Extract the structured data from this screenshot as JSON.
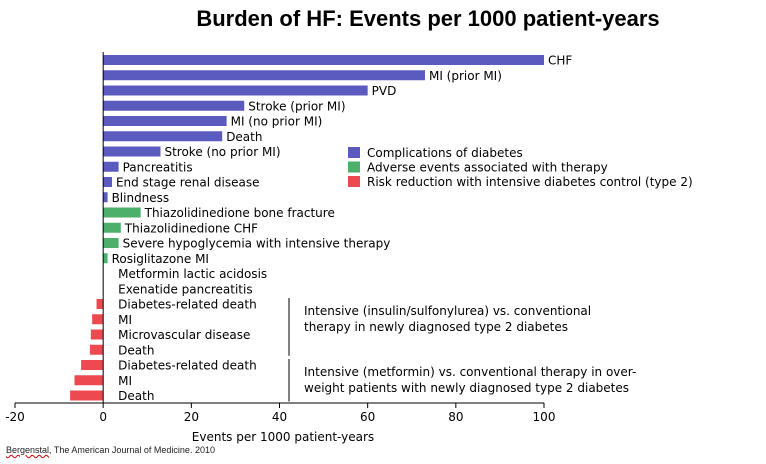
{
  "chart_data": {
    "type": "bar",
    "orientation": "horizontal",
    "title": "Burden of HF: Events per 1000 patient-years",
    "xlabel": "Events per 1000 patient-years",
    "ylabel": "",
    "xlim": [
      -20,
      100
    ],
    "xticks": [
      "-20",
      "0",
      "20",
      "40",
      "60",
      "80",
      "100"
    ],
    "grid": false,
    "legend_position": "right",
    "legend": [
      {
        "name": "Complications of diabetes",
        "color": "#5b5bbf"
      },
      {
        "name": "Adverse events associated with therapy",
        "color": "#4caf6a"
      },
      {
        "name": "Risk reduction with intensive diabetes control (type 2)",
        "color": "#ec4a50"
      }
    ],
    "categories": [
      "CHF",
      "MI (prior MI)",
      "PVD",
      "Stroke (prior MI)",
      "MI (no prior MI)",
      "Death",
      "Stroke (no prior MI)",
      "Pancreatitis",
      "End stage renal disease",
      "Blindness",
      "Thiazolidinedione bone fracture",
      "Thiazolidinedione CHF",
      "Severe hypoglycemia with intensive therapy",
      "Rosiglitazone MI",
      "Metformin lactic acidosis",
      "Exenatide pancreatitis",
      "Diabetes-related death",
      "MI",
      "Microvascular disease",
      "Death",
      "Diabetes-related death",
      "MI",
      "Death"
    ],
    "values": [
      100,
      73,
      60,
      32,
      28,
      27,
      13,
      3.5,
      2,
      1,
      8.5,
      4,
      3.5,
      1,
      0,
      0,
      -1.5,
      -2.5,
      -2.8,
      -3,
      -5,
      -6.5,
      -7.5
    ],
    "groups": [
      0,
      0,
      0,
      0,
      0,
      0,
      0,
      0,
      0,
      0,
      1,
      1,
      1,
      1,
      1,
      1,
      2,
      2,
      2,
      2,
      2,
      2,
      2
    ],
    "annotations": [
      {
        "rows": [
          16,
          19
        ],
        "text_lines": [
          "Intensive (insulin/sulfonylurea) vs. conventional",
          "therapy in newly diagnosed type 2 diabetes"
        ]
      },
      {
        "rows": [
          20,
          22
        ],
        "text_lines": [
          "Intensive (metformin) vs. conventional therapy in over-",
          "weight patients with newly diagnosed type 2 diabetes"
        ]
      }
    ]
  },
  "citation": {
    "author": "Bergenstal",
    "rest": ", The American Journal of Medicine. 2010"
  }
}
